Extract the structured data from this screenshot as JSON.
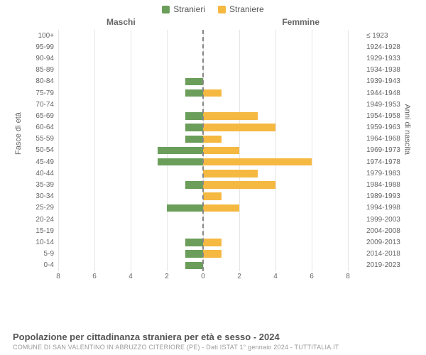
{
  "legend": {
    "male": {
      "label": "Stranieri",
      "color": "#6a9e5a"
    },
    "female": {
      "label": "Straniere",
      "color": "#f5b841"
    }
  },
  "headers": {
    "male": "Maschi",
    "female": "Femmine"
  },
  "axis_labels": {
    "left": "Fasce di età",
    "right": "Anni di nascita"
  },
  "chart": {
    "type": "population-pyramid",
    "x_max": 8,
    "x_ticks": [
      8,
      6,
      4,
      2,
      0,
      2,
      4,
      6,
      8
    ],
    "grid_color": "#e5e5e5",
    "center_line_color": "#888888",
    "background": "#ffffff",
    "bar_color_m": "#6a9e5a",
    "bar_color_f": "#f5b841",
    "rows": [
      {
        "age": "100+",
        "birth": "≤ 1923",
        "m": 0,
        "f": 0
      },
      {
        "age": "95-99",
        "birth": "1924-1928",
        "m": 0,
        "f": 0
      },
      {
        "age": "90-94",
        "birth": "1929-1933",
        "m": 0,
        "f": 0
      },
      {
        "age": "85-89",
        "birth": "1934-1938",
        "m": 0,
        "f": 0
      },
      {
        "age": "80-84",
        "birth": "1939-1943",
        "m": 1,
        "f": 0
      },
      {
        "age": "75-79",
        "birth": "1944-1948",
        "m": 1,
        "f": 1
      },
      {
        "age": "70-74",
        "birth": "1949-1953",
        "m": 0,
        "f": 0
      },
      {
        "age": "65-69",
        "birth": "1954-1958",
        "m": 1,
        "f": 3
      },
      {
        "age": "60-64",
        "birth": "1959-1963",
        "m": 1,
        "f": 4
      },
      {
        "age": "55-59",
        "birth": "1964-1968",
        "m": 1,
        "f": 1
      },
      {
        "age": "50-54",
        "birth": "1969-1973",
        "m": 2.5,
        "f": 2
      },
      {
        "age": "45-49",
        "birth": "1974-1978",
        "m": 2.5,
        "f": 6
      },
      {
        "age": "40-44",
        "birth": "1979-1983",
        "m": 0,
        "f": 3
      },
      {
        "age": "35-39",
        "birth": "1984-1988",
        "m": 1,
        "f": 4
      },
      {
        "age": "30-34",
        "birth": "1989-1993",
        "m": 0,
        "f": 1
      },
      {
        "age": "25-29",
        "birth": "1994-1998",
        "m": 2,
        "f": 2
      },
      {
        "age": "20-24",
        "birth": "1999-2003",
        "m": 0,
        "f": 0
      },
      {
        "age": "15-19",
        "birth": "2004-2008",
        "m": 0,
        "f": 0
      },
      {
        "age": "10-14",
        "birth": "2009-2013",
        "m": 1,
        "f": 1
      },
      {
        "age": "5-9",
        "birth": "2014-2018",
        "m": 1,
        "f": 1
      },
      {
        "age": "0-4",
        "birth": "2019-2023",
        "m": 1,
        "f": 0
      }
    ]
  },
  "footer": {
    "title": "Popolazione per cittadinanza straniera per età e sesso - 2024",
    "subtitle": "COMUNE DI SAN VALENTINO IN ABRUZZO CITERIORE (PE) - Dati ISTAT 1° gennaio 2024 - TUTTITALIA.IT"
  }
}
